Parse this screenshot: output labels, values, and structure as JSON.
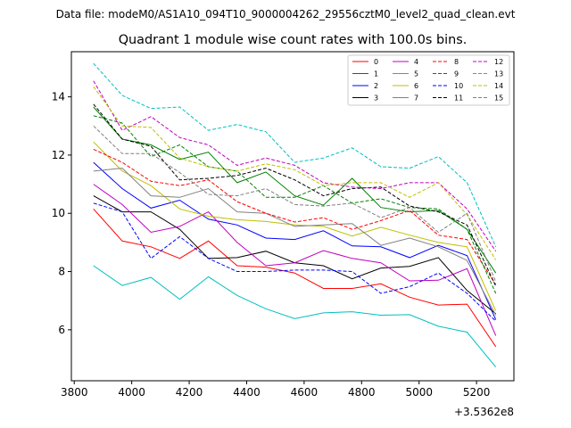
{
  "header": {
    "suptitle": "Data file: modeM0/AS1A10_094T10_9000004262_29556cztM0_level2_quad_clean.evt"
  },
  "chart_data": {
    "type": "line",
    "title": "Quadrant 1 module wise count rates with 100.0s bins.",
    "xlabel": "",
    "ylabel": "",
    "x_offset_label": "+3.5362e8",
    "xlim": [
      3790,
      5330
    ],
    "ylim": [
      4.25,
      15.55
    ],
    "xticks": [
      3800,
      4000,
      4200,
      4400,
      4600,
      4800,
      5000,
      5200
    ],
    "yticks": [
      6,
      8,
      10,
      12,
      14
    ],
    "grid": false,
    "legend_position": "top-right",
    "legend_columns": 4,
    "x": [
      3867,
      3967,
      4067,
      4167,
      4267,
      4367,
      4467,
      4567,
      4667,
      4767,
      4867,
      4967,
      5067,
      5167,
      5267
    ],
    "series": [
      {
        "name": "0",
        "color": "#ff0000",
        "dash": "solid",
        "values": [
          10.15,
          9.05,
          8.85,
          8.45,
          9.05,
          8.2,
          8.15,
          7.95,
          7.42,
          7.42,
          7.58,
          7.12,
          6.85,
          6.88,
          5.42
        ]
      },
      {
        "name": "1",
        "color": "#008000",
        "dash": "solid",
        "values": [
          13.65,
          12.55,
          12.35,
          11.85,
          12.1,
          11.05,
          11.42,
          10.6,
          10.28,
          11.2,
          10.2,
          10.05,
          10.1,
          9.45,
          7.95
        ]
      },
      {
        "name": "2",
        "color": "#0000ff",
        "dash": "solid",
        "values": [
          11.75,
          10.85,
          10.18,
          10.45,
          9.8,
          9.6,
          9.15,
          9.1,
          9.4,
          8.88,
          8.85,
          8.48,
          8.9,
          8.55,
          6.35
        ]
      },
      {
        "name": "3",
        "color": "#000000",
        "dash": "solid",
        "values": [
          10.6,
          10.05,
          10.05,
          9.45,
          8.45,
          8.48,
          8.7,
          8.3,
          8.2,
          7.75,
          8.12,
          8.18,
          8.48,
          7.35,
          6.55
        ]
      },
      {
        "name": "4",
        "color": "#bf00bf",
        "dash": "solid",
        "values": [
          11.0,
          10.3,
          9.35,
          9.55,
          10.05,
          9.0,
          8.2,
          8.3,
          8.72,
          8.45,
          8.3,
          7.68,
          7.7,
          8.1,
          5.8
        ]
      },
      {
        "name": "5",
        "color": "#00bfbf",
        "dash": "solid",
        "values": [
          8.2,
          7.52,
          7.8,
          7.05,
          7.82,
          7.18,
          6.72,
          6.38,
          6.58,
          6.62,
          6.5,
          6.52,
          6.12,
          5.92,
          4.72
        ]
      },
      {
        "name": "6",
        "color": "#bfbf00",
        "dash": "solid",
        "values": [
          12.45,
          11.45,
          10.95,
          10.15,
          9.9,
          9.78,
          9.72,
          9.6,
          9.55,
          9.22,
          9.52,
          9.25,
          9.0,
          8.85,
          6.65
        ]
      },
      {
        "name": "7",
        "color": "#808080",
        "dash": "solid",
        "values": [
          11.45,
          11.55,
          10.6,
          10.55,
          10.85,
          10.05,
          10.0,
          9.55,
          9.6,
          9.65,
          8.9,
          9.15,
          8.85,
          8.38,
          6.5
        ]
      },
      {
        "name": "8",
        "color": "#ff0000",
        "dash": "dashed",
        "values": [
          12.2,
          11.75,
          11.1,
          10.95,
          11.15,
          10.4,
          10.0,
          9.7,
          9.85,
          9.45,
          9.75,
          10.1,
          9.25,
          9.1,
          7.55
        ]
      },
      {
        "name": "9",
        "color": "#008000",
        "dash": "dashed",
        "values": [
          13.35,
          13.1,
          11.95,
          12.35,
          11.6,
          11.45,
          10.55,
          10.55,
          10.95,
          10.35,
          10.5,
          10.2,
          10.15,
          9.45,
          7.25
        ]
      },
      {
        "name": "10",
        "color": "#0000ff",
        "dash": "dashed",
        "values": [
          10.35,
          10.05,
          8.45,
          9.2,
          8.45,
          8.0,
          8.0,
          8.05,
          8.05,
          8.0,
          7.25,
          7.48,
          7.95,
          7.25,
          6.3
        ]
      },
      {
        "name": "11",
        "color": "#000000",
        "dash": "dashed",
        "values": [
          13.75,
          12.55,
          12.3,
          11.15,
          11.2,
          11.3,
          11.55,
          11.15,
          10.6,
          10.85,
          10.9,
          10.25,
          10.05,
          9.6,
          7.5
        ]
      },
      {
        "name": "12",
        "color": "#bf00bf",
        "dash": "dashed",
        "values": [
          14.55,
          12.85,
          13.32,
          12.6,
          12.35,
          11.65,
          11.9,
          11.65,
          11.05,
          10.9,
          10.85,
          11.05,
          11.05,
          10.15,
          8.7
        ]
      },
      {
        "name": "13",
        "color": "#00bfbf",
        "dash": "dashed",
        "values": [
          15.15,
          14.05,
          13.6,
          13.65,
          12.85,
          13.05,
          12.8,
          11.75,
          11.9,
          12.25,
          11.6,
          11.55,
          11.95,
          11.05,
          8.85
        ]
      },
      {
        "name": "14",
        "color": "#bfbf00",
        "dash": "dashed",
        "values": [
          14.35,
          13.0,
          12.95,
          11.9,
          11.6,
          11.45,
          11.7,
          11.5,
          10.95,
          11.05,
          11.05,
          10.55,
          11.05,
          9.95,
          8.4
        ]
      },
      {
        "name": "15",
        "color": "#808080",
        "dash": "dashed",
        "values": [
          13.0,
          12.05,
          12.05,
          11.4,
          10.65,
          10.6,
          10.85,
          10.3,
          10.25,
          10.35,
          9.85,
          10.2,
          9.35,
          10.0,
          7.65
        ]
      }
    ]
  }
}
